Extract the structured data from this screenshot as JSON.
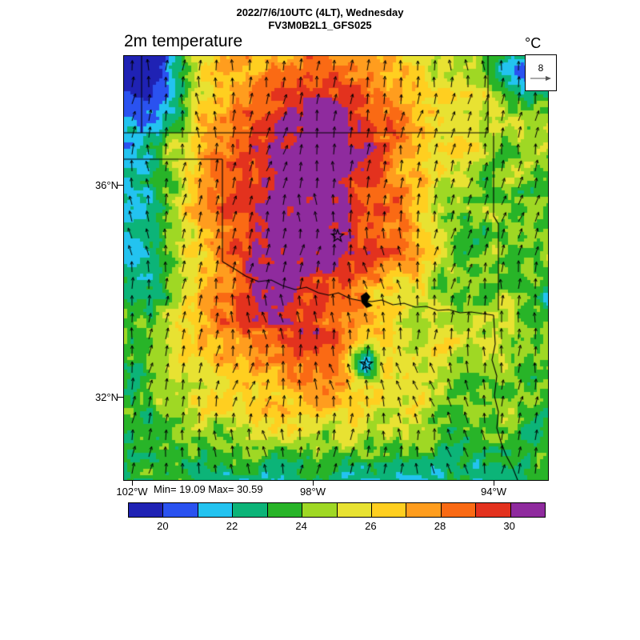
{
  "header": {
    "datetime_line": "2022/7/6/10UTC (4LT), Wednesday",
    "model_line": "FV3M0B2L1_GFS025",
    "plot_title": "2m temperature",
    "units_label": "°C"
  },
  "reference_vector": {
    "value": "8"
  },
  "axes": {
    "lat_ticks": [
      {
        "label": "36°N"
      },
      {
        "label": "32°N"
      }
    ],
    "lon_ticks": [
      {
        "label": "102°W"
      },
      {
        "label": "98°W"
      },
      {
        "label": "94°W"
      }
    ]
  },
  "stats": {
    "text": "Min= 19.09 Max= 30.59"
  },
  "colorbar_labels": [
    "20",
    "22",
    "24",
    "26",
    "28",
    "30"
  ],
  "chart_data": {
    "type": "heatmap",
    "title": "2m temperature",
    "units": "°C",
    "valid_time": "2022/7/6/10UTC (4LT), Wednesday",
    "model_run": "FV3M0B2L1_GFS025",
    "field_min": 19.09,
    "field_max": 30.59,
    "wind_reference_vector": 8,
    "colorbar": {
      "value_range": [
        19,
        31
      ],
      "tick_values": [
        20,
        22,
        24,
        26,
        28,
        30
      ],
      "segment_colors": [
        "#1f22b4",
        "#2a52f0",
        "#23c3f0",
        "#0cb478",
        "#28b428",
        "#9fd824",
        "#e8e232",
        "#ffcf20",
        "#ff9d1e",
        "#fa6a14",
        "#e3321e",
        "#8f2b9e"
      ]
    },
    "x_axis": {
      "tick_labels": [
        "102°W",
        "98°W",
        "94°W"
      ],
      "approx_range_degW": [
        102.3,
        92.9
      ]
    },
    "y_axis": {
      "tick_labels": [
        "36°N",
        "32°N"
      ],
      "approx_range_degN": [
        30.4,
        38.4
      ]
    },
    "overlays": [
      "wind-vector-arrows",
      "state-borders",
      "star-markers",
      "lake-outline"
    ]
  }
}
